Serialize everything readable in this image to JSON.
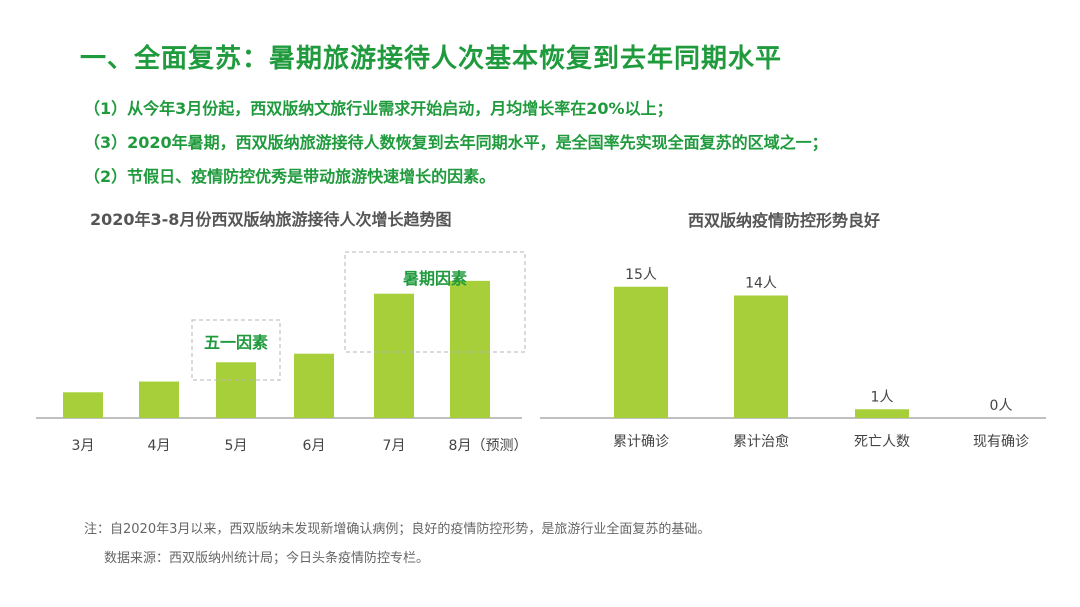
{
  "title": "一、全面复苏：暑期旅游接待人次基本恢复到去年同期水平",
  "bullets": [
    "（1）从今年3月份起，西双版纳文旅行业需求开始启动，月均增长率在20%以上；",
    "（3）2020年暑期，西双版纳旅游接待人数恢复到去年同期水平，是全国率先实现全面复苏的区域之一；",
    "（2）节假日、疫情防控优秀是带动旅游快速增长的因素。"
  ],
  "colors": {
    "title_green": "#1f9a3c",
    "bar_green": "#a6cf3a",
    "axis": "#9a9a9a",
    "dashed_box": "#b5b5b5"
  },
  "chart_data": [
    {
      "type": "bar",
      "title": "2020年3-8月份西双版纳旅游接待人次增长趋势图",
      "categories": [
        "3月",
        "4月",
        "5月",
        "6月",
        "7月",
        "8月（预测）"
      ],
      "values": [
        24,
        34,
        52,
        60,
        116,
        128
      ],
      "ylim": [
        0,
        140
      ],
      "axis_note": "relative values read from bar heights; no y-axis shown",
      "annotations": [
        {
          "text": "五一因素",
          "categories": [
            "5月"
          ]
        },
        {
          "text": "暑期因素",
          "categories": [
            "7月",
            "8月（预测）"
          ]
        }
      ]
    },
    {
      "type": "bar",
      "title": "西双版纳疫情防控形势良好",
      "categories": [
        "累计确诊",
        "累计治愈",
        "死亡人数",
        "现有确诊"
      ],
      "values": [
        15,
        14,
        1,
        0
      ],
      "data_labels": [
        "15人",
        "14人",
        "1人",
        "0人"
      ],
      "ylim": [
        0,
        16
      ]
    }
  ],
  "footnotes": {
    "note": "注：自2020年3月以来，西双版纳未发现新增确认病例；良好的疫情防控形势，是旅游行业全面复苏的基础。",
    "source": "数据来源：西双版纳州统计局；今日头条疫情防控专栏。"
  }
}
